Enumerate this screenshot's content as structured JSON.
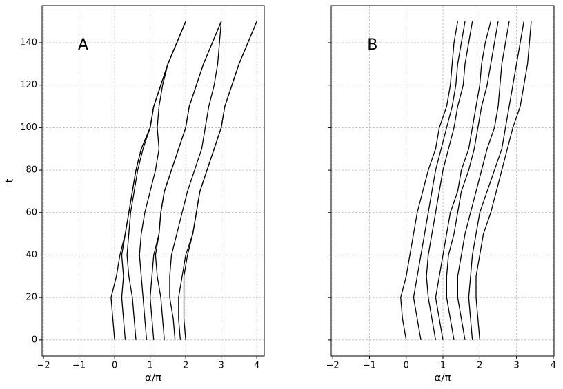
{
  "chart_data": [
    {
      "type": "line",
      "label": "A",
      "xlabel": "α/π",
      "ylabel": "t",
      "color": "#000000",
      "grid": true,
      "xlim": [
        -2.04,
        4.21
      ],
      "ylim": [
        -7.5,
        157.5
      ],
      "xticks": [
        {
          "value": -2,
          "label": "−2"
        },
        {
          "value": -1,
          "label": "−1"
        },
        0,
        1,
        2,
        3,
        4
      ],
      "yticks": [
        0,
        20,
        40,
        60,
        80,
        100,
        120,
        140
      ],
      "y": [
        0,
        10,
        20,
        30,
        40,
        50,
        60,
        70,
        80,
        90,
        100,
        110,
        120,
        130,
        140,
        150
      ],
      "series": [
        {
          "x": [
            0.0,
            -0.05,
            -0.1,
            0.05,
            0.15,
            0.3,
            0.4,
            0.5,
            0.6,
            0.75,
            1.0,
            1.1,
            1.3,
            1.5,
            1.75,
            2.0
          ]
        },
        {
          "x": [
            0.3,
            0.25,
            0.2,
            0.25,
            0.2,
            0.3,
            0.4,
            0.5,
            0.6,
            0.75,
            1.0,
            1.1,
            1.3,
            1.5,
            1.75,
            2.0
          ]
        },
        {
          "x": [
            0.6,
            0.55,
            0.5,
            0.4,
            0.35,
            0.4,
            0.45,
            0.55,
            0.65,
            0.8,
            1.0,
            1.1,
            1.3,
            1.5,
            1.75,
            2.0
          ]
        },
        {
          "x": [
            0.9,
            0.85,
            0.8,
            0.75,
            0.7,
            0.75,
            0.85,
            1.0,
            1.15,
            1.25,
            1.2,
            1.25,
            1.35,
            1.5,
            1.75,
            2.0
          ]
        },
        {
          "x": [
            1.1,
            1.05,
            1.0,
            1.05,
            1.1,
            1.25,
            1.3,
            1.4,
            1.6,
            1.8,
            2.0,
            2.1,
            2.3,
            2.5,
            2.75,
            3.0
          ]
        },
        {
          "x": [
            1.4,
            1.35,
            1.3,
            1.2,
            1.15,
            1.25,
            1.3,
            1.4,
            1.6,
            1.8,
            2.0,
            2.1,
            2.3,
            2.5,
            2.75,
            3.0
          ]
        },
        {
          "x": [
            1.7,
            1.65,
            1.55,
            1.55,
            1.6,
            1.75,
            1.9,
            2.05,
            2.25,
            2.45,
            2.55,
            2.65,
            2.8,
            2.9,
            2.95,
            3.0
          ]
        },
        {
          "x": [
            1.85,
            1.8,
            1.8,
            1.9,
            2.0,
            2.2,
            2.3,
            2.4,
            2.6,
            2.8,
            3.0,
            3.1,
            3.3,
            3.5,
            3.75,
            4.0
          ]
        },
        {
          "x": [
            2.0,
            1.95,
            1.95,
            1.95,
            2.05,
            2.2,
            2.3,
            2.4,
            2.6,
            2.8,
            3.0,
            3.1,
            3.3,
            3.5,
            3.75,
            4.0
          ]
        }
      ]
    },
    {
      "type": "line",
      "label": "B",
      "xlabel": "α/π",
      "color": "#000000",
      "grid": true,
      "xlim": [
        -2.04,
        4.02
      ],
      "ylim": [
        -7.5,
        157.5
      ],
      "xticks": [
        {
          "value": -2,
          "label": "−2"
        },
        {
          "value": -1,
          "label": "−1"
        },
        0,
        1,
        2,
        3,
        4
      ],
      "yticks": [
        0,
        20,
        40,
        60,
        80,
        100,
        120,
        140
      ],
      "y": [
        0,
        10,
        20,
        30,
        40,
        50,
        60,
        70,
        80,
        90,
        100,
        110,
        120,
        130,
        140,
        150
      ],
      "series": [
        {
          "x": [
            0.0,
            -0.1,
            -0.15,
            0.0,
            0.1,
            0.2,
            0.3,
            0.45,
            0.6,
            0.8,
            0.9,
            1.1,
            1.2,
            1.25,
            1.3,
            1.4
          ]
        },
        {
          "x": [
            0.4,
            0.3,
            0.2,
            0.3,
            0.4,
            0.5,
            0.6,
            0.7,
            0.8,
            0.95,
            1.1,
            1.25,
            1.35,
            1.4,
            1.5,
            1.6
          ]
        },
        {
          "x": [
            0.8,
            0.7,
            0.6,
            0.55,
            0.6,
            0.7,
            0.8,
            0.9,
            1.0,
            1.15,
            1.3,
            1.4,
            1.55,
            1.6,
            1.7,
            1.8
          ]
        },
        {
          "x": [
            1.0,
            0.9,
            0.8,
            0.9,
            1.0,
            1.1,
            1.2,
            1.4,
            1.5,
            1.7,
            1.8,
            1.9,
            2.0,
            2.05,
            2.15,
            2.3
          ]
        },
        {
          "x": [
            1.3,
            1.2,
            1.1,
            1.1,
            1.15,
            1.3,
            1.4,
            1.5,
            1.7,
            1.85,
            1.95,
            2.05,
            2.2,
            2.3,
            2.4,
            2.5
          ]
        },
        {
          "x": [
            1.6,
            1.5,
            1.4,
            1.4,
            1.5,
            1.6,
            1.75,
            1.9,
            2.05,
            2.2,
            2.4,
            2.5,
            2.55,
            2.6,
            2.7,
            2.8
          ]
        },
        {
          "x": [
            1.8,
            1.75,
            1.7,
            1.75,
            1.8,
            1.9,
            2.0,
            2.2,
            2.4,
            2.6,
            2.7,
            2.8,
            2.9,
            3.0,
            3.1,
            3.2
          ]
        },
        {
          "x": [
            2.0,
            1.95,
            1.9,
            1.9,
            2.0,
            2.1,
            2.3,
            2.45,
            2.6,
            2.75,
            2.9,
            3.1,
            3.2,
            3.3,
            3.35,
            3.4
          ]
        }
      ]
    }
  ]
}
